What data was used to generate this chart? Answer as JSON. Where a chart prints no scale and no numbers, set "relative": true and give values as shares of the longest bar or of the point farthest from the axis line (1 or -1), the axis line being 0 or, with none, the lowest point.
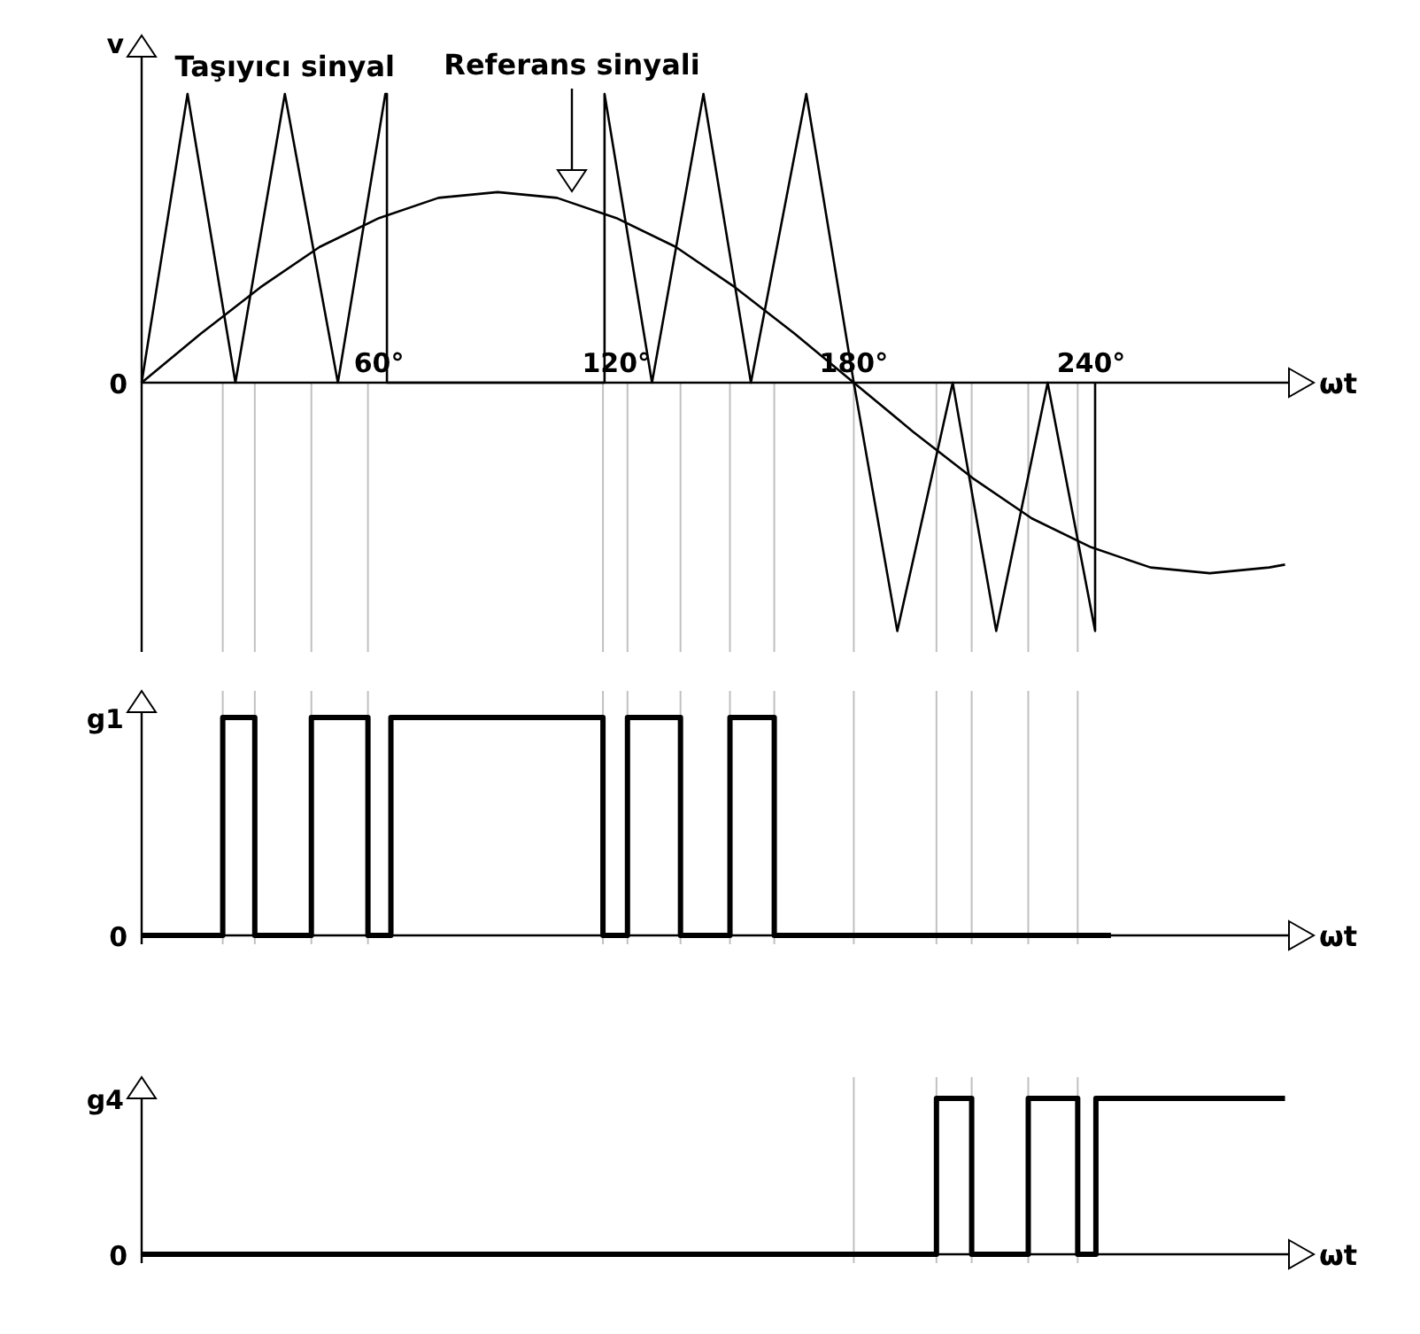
{
  "chart_data": [
    {
      "type": "line",
      "relative": true,
      "xlabel": "ωt",
      "ylabel": "v",
      "xlim": [
        0,
        290
      ],
      "xticks": [
        {
          "value": 60,
          "label": "60°"
        },
        {
          "value": 120,
          "label": "120°"
        },
        {
          "value": 180,
          "label": "180°"
        },
        {
          "value": 240,
          "label": "240°"
        }
      ],
      "series": [
        {
          "color": "#000000",
          "x": [
            0,
            11.6,
            23.7,
            36.2,
            49.6,
            61.6,
            62,
            62,
            117,
            117,
            129,
            142,
            154,
            168,
            180,
            191,
            205,
            216,
            229,
            241,
            241
          ],
          "values": [
            0,
            1,
            0,
            1,
            0,
            1,
            1,
            0,
            0,
            1,
            0,
            1,
            0,
            1,
            0,
            -0.86,
            0,
            -0.86,
            0,
            -0.86,
            0
          ]
        },
        {
          "color": "#000000",
          "x": [
            0,
            15,
            30,
            45,
            60,
            75,
            90,
            105,
            120,
            135,
            150,
            165,
            180,
            195,
            210,
            225,
            240,
            255,
            270,
            285,
            289
          ],
          "values": [
            0,
            0.17,
            0.33,
            0.47,
            0.57,
            0.64,
            0.66,
            0.64,
            0.57,
            0.47,
            0.33,
            0.17,
            0,
            -0.17,
            -0.33,
            -0.47,
            -0.57,
            -0.64,
            -0.66,
            -0.64,
            -0.63
          ]
        }
      ],
      "ref_lines": [
        {
          "axis": "x",
          "value": 20.5,
          "color": "#c0c0c0"
        },
        {
          "axis": "x",
          "value": 28.6,
          "color": "#c0c0c0"
        },
        {
          "axis": "x",
          "value": 42.9,
          "color": "#c0c0c0"
        },
        {
          "axis": "x",
          "value": 57.2,
          "color": "#c0c0c0"
        },
        {
          "axis": "x",
          "value": 116.6,
          "color": "#c0c0c0"
        },
        {
          "axis": "x",
          "value": 122.8,
          "color": "#c0c0c0"
        },
        {
          "axis": "x",
          "value": 136.2,
          "color": "#c0c0c0"
        },
        {
          "axis": "x",
          "value": 148.7,
          "color": "#c0c0c0"
        },
        {
          "axis": "x",
          "value": 159.9,
          "color": "#c0c0c0"
        },
        {
          "axis": "x",
          "value": 180,
          "color": "#c0c0c0"
        },
        {
          "axis": "x",
          "value": 200.9,
          "color": "#c0c0c0"
        },
        {
          "axis": "x",
          "value": 209.8,
          "color": "#c0c0c0"
        },
        {
          "axis": "x",
          "value": 224.1,
          "color": "#c0c0c0"
        },
        {
          "axis": "x",
          "value": 236.6,
          "color": "#c0c0c0"
        }
      ],
      "annotations": [
        "0",
        {
          "text": "Taşıyıcı sinyal",
          "x": 36.2,
          "y": 1
        },
        "Referans sinyali"
      ]
    },
    {
      "type": "step",
      "relative": true,
      "xlabel": "ωt",
      "ylabel": "g1",
      "xlim": [
        0,
        290
      ],
      "series": [
        {
          "color": "#000000",
          "x": [
            0,
            20.5,
            28.6,
            42.9,
            57.2,
            63,
            116.6,
            122.8,
            136.2,
            148.7,
            159.9,
            245
          ],
          "values": [
            0,
            1,
            0,
            1,
            0,
            1,
            0,
            1,
            0,
            1,
            0,
            0
          ]
        }
      ],
      "ref_lines": [
        {
          "axis": "x",
          "value": 20.5,
          "color": "#c0c0c0"
        },
        {
          "axis": "x",
          "value": 28.6,
          "color": "#c0c0c0"
        },
        {
          "axis": "x",
          "value": 42.9,
          "color": "#c0c0c0"
        },
        {
          "axis": "x",
          "value": 57.2,
          "color": "#c0c0c0"
        },
        {
          "axis": "x",
          "value": 116.6,
          "color": "#c0c0c0"
        },
        {
          "axis": "x",
          "value": 122.8,
          "color": "#c0c0c0"
        },
        {
          "axis": "x",
          "value": 136.2,
          "color": "#c0c0c0"
        },
        {
          "axis": "x",
          "value": 148.7,
          "color": "#c0c0c0"
        },
        {
          "axis": "x",
          "value": 159.9,
          "color": "#c0c0c0"
        },
        {
          "axis": "x",
          "value": 180,
          "color": "#c0c0c0"
        },
        {
          "axis": "x",
          "value": 200.9,
          "color": "#c0c0c0"
        },
        {
          "axis": "x",
          "value": 209.8,
          "color": "#c0c0c0"
        },
        {
          "axis": "x",
          "value": 224.1,
          "color": "#c0c0c0"
        },
        {
          "axis": "x",
          "value": 236.6,
          "color": "#c0c0c0"
        }
      ],
      "annotations": [
        "0"
      ]
    },
    {
      "type": "step",
      "relative": true,
      "xlabel": "ωt",
      "ylabel": "g4",
      "xlim": [
        0,
        290
      ],
      "series": [
        {
          "color": "#000000",
          "x": [
            0,
            200.9,
            209.8,
            224.1,
            236.6,
            241.2,
            289
          ],
          "values": [
            0,
            1,
            0,
            1,
            0,
            1,
            1
          ]
        }
      ],
      "ref_lines": [
        {
          "axis": "x",
          "value": 180,
          "color": "#c0c0c0"
        },
        {
          "axis": "x",
          "value": 200.9,
          "color": "#c0c0c0"
        },
        {
          "axis": "x",
          "value": 209.8,
          "color": "#c0c0c0"
        },
        {
          "axis": "x",
          "value": 224.1,
          "color": "#c0c0c0"
        },
        {
          "axis": "x",
          "value": 236.6,
          "color": "#c0c0c0"
        }
      ],
      "annotations": [
        "0"
      ]
    }
  ]
}
